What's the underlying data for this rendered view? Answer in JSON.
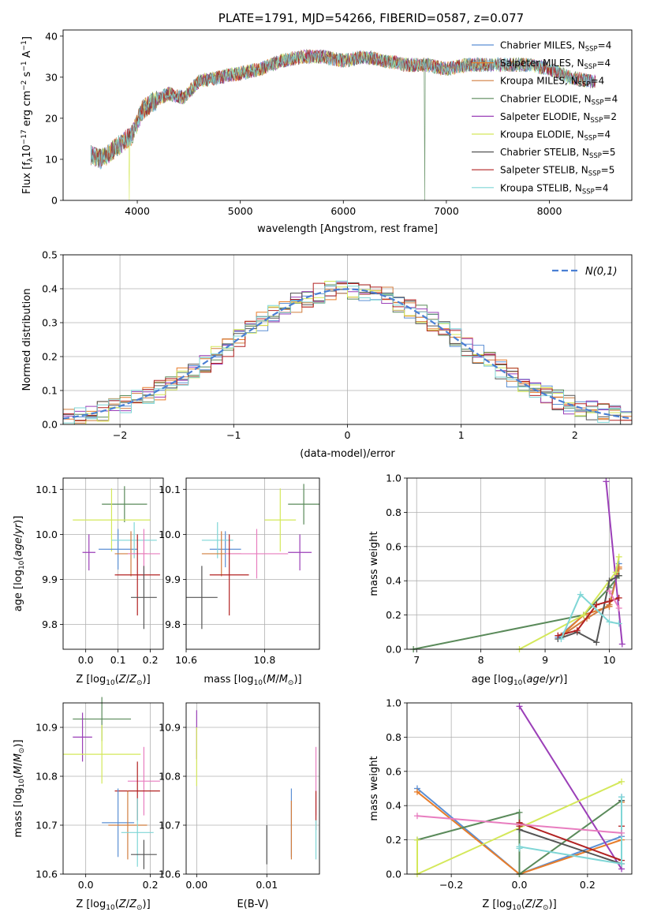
{
  "chart_data": [
    {
      "id": "spectrum",
      "type": "line",
      "title": "PLATE=1791, MJD=54266, FIBERID=0587, z=0.077",
      "xlabel": "wavelength [Angstrom, rest frame]",
      "ylabel": "Flux [f_λ10^-17 erg cm^-2 s^-1 A^-1]",
      "xlim": [
        3280,
        8800
      ],
      "ylim": [
        0,
        41.5
      ],
      "xticks": [
        4000,
        5000,
        6000,
        7000,
        8000
      ],
      "yticks": [
        0,
        10,
        20,
        30,
        40
      ],
      "legend_position": "top-right",
      "legend": [
        {
          "name": "Chabrier MILES, N_SSP=4",
          "color": "#5b8fd4"
        },
        {
          "name": "Salpeter MILES, N_SSP=4",
          "color": "#e87d2a"
        },
        {
          "name": "Kroupa MILES, N_SSP=4",
          "color": "#d17d3f"
        },
        {
          "name": "Chabrier ELODIE, N_SSP=4",
          "color": "#5a8a5a"
        },
        {
          "name": "Salpeter ELODIE, N_SSP=2",
          "color": "#9b3fb8"
        },
        {
          "name": "Kroupa ELODIE, N_SSP=4",
          "color": "#d4e85a"
        },
        {
          "name": "Chabrier STELIB, N_SSP=5",
          "color": "#555555"
        },
        {
          "name": "Salpeter STELIB, N_SSP=5",
          "color": "#b22222"
        },
        {
          "name": "Kroupa STELIB, N_SSP=4",
          "color": "#7fd6d6"
        }
      ],
      "spectrum_envelope": {
        "x": [
          3550,
          3650,
          3750,
          3850,
          3950,
          4050,
          4150,
          4300,
          4450,
          4600,
          4800,
          5000,
          5200,
          5400,
          5600,
          5800,
          6000,
          6200,
          6400,
          6600,
          6800,
          7000,
          7200,
          7400,
          7600,
          7800,
          8000,
          8200,
          8400
        ],
        "y": [
          11,
          10,
          12,
          14,
          16,
          22,
          24,
          26,
          25,
          29,
          30,
          31,
          32,
          34,
          35,
          35,
          34,
          35,
          34,
          33,
          33,
          32,
          33,
          33,
          33,
          33,
          32,
          30,
          29
        ]
      }
    },
    {
      "id": "residuals",
      "type": "bar",
      "xlabel": "(data-model)/error",
      "ylabel": "Normed distribution",
      "xlim": [
        -2.5,
        2.5
      ],
      "ylim": [
        0,
        0.5
      ],
      "xticks": [
        -2,
        -1,
        0,
        1,
        2
      ],
      "yticks": [
        0.0,
        0.1,
        0.2,
        0.3,
        0.4,
        0.5
      ],
      "legend_position": "top-right",
      "reference_label": "N(0,1)",
      "bin_width": 0.1
    },
    {
      "id": "age_vs_Z",
      "type": "scatter",
      "xlabel": "Z [log10(Z/Z⊙)]",
      "ylabel": "age [log10(age/yr)]",
      "xlim": [
        -0.07,
        0.24
      ],
      "ylim": [
        9.745,
        10.125
      ],
      "xticks": [
        0.0,
        0.1,
        0.2
      ],
      "yticks": [
        9.8,
        9.9,
        10.0,
        10.1
      ],
      "points": [
        {
          "x": 0.12,
          "y": 10.067,
          "xerr": 0.07,
          "yerr": 0.04,
          "color": "#5a8a5a"
        },
        {
          "x": 0.08,
          "y": 10.032,
          "xerr": 0.12,
          "yerr": 0.07,
          "color": "#d4e85a"
        },
        {
          "x": 0.1,
          "y": 9.967,
          "xerr": 0.06,
          "yerr": 0.045,
          "color": "#5b8fd4"
        },
        {
          "x": 0.15,
          "y": 9.987,
          "xerr": 0.07,
          "yerr": 0.04,
          "color": "#7fd6d6"
        },
        {
          "x": 0.01,
          "y": 9.96,
          "xerr": 0.02,
          "yerr": 0.04,
          "color": "#9b3fb8"
        },
        {
          "x": 0.14,
          "y": 9.957,
          "xerr": 0.05,
          "yerr": 0.05,
          "color": "#d17d3f"
        },
        {
          "x": 0.18,
          "y": 9.957,
          "xerr": 0.05,
          "yerr": 0.055,
          "color": "#e87dbf"
        },
        {
          "x": 0.16,
          "y": 9.91,
          "xerr": 0.07,
          "yerr": 0.09,
          "color": "#b22222"
        },
        {
          "x": 0.18,
          "y": 9.86,
          "xerr": 0.04,
          "yerr": 0.07,
          "color": "#555555"
        }
      ]
    },
    {
      "id": "age_vs_mass",
      "type": "scatter",
      "xlabel": "mass [log10(M/M⊙)]",
      "ylabel": "",
      "xlim": [
        10.6,
        10.94
      ],
      "ylim": [
        9.745,
        10.125
      ],
      "xticks": [
        10.6,
        10.8
      ],
      "yticks": [
        9.8,
        9.9,
        10.0,
        10.1
      ],
      "points": [
        {
          "x": 10.9,
          "y": 10.067,
          "xerr": 0.04,
          "yerr": 0.045,
          "color": "#5a8a5a"
        },
        {
          "x": 10.84,
          "y": 10.032,
          "xerr": 0.04,
          "yerr": 0.07,
          "color": "#d4e85a"
        },
        {
          "x": 10.7,
          "y": 9.967,
          "xerr": 0.04,
          "yerr": 0.04,
          "color": "#5b8fd4"
        },
        {
          "x": 10.68,
          "y": 9.987,
          "xerr": 0.04,
          "yerr": 0.04,
          "color": "#7fd6d6"
        },
        {
          "x": 10.89,
          "y": 9.96,
          "xerr": 0.03,
          "yerr": 0.04,
          "color": "#9b3fb8"
        },
        {
          "x": 10.69,
          "y": 9.957,
          "xerr": 0.05,
          "yerr": 0.05,
          "color": "#d17d3f"
        },
        {
          "x": 10.78,
          "y": 9.957,
          "xerr": 0.08,
          "yerr": 0.055,
          "color": "#e87dbf"
        },
        {
          "x": 10.71,
          "y": 9.91,
          "xerr": 0.05,
          "yerr": 0.09,
          "color": "#b22222"
        },
        {
          "x": 10.64,
          "y": 9.86,
          "xerr": 0.04,
          "yerr": 0.07,
          "color": "#555555"
        }
      ]
    },
    {
      "id": "mass_weight_vs_age",
      "type": "line",
      "xlabel": "age [log10(age/yr)]",
      "ylabel": "mass weight",
      "xlim": [
        6.85,
        10.35
      ],
      "ylim": [
        0,
        1
      ],
      "xticks": [
        7,
        8,
        9,
        10
      ],
      "yticks": [
        0.0,
        0.2,
        0.4,
        0.6,
        0.8,
        1.0
      ],
      "series": [
        {
          "color": "#5b8fd4",
          "x": [
            9.2,
            9.6,
            10.0,
            10.15
          ],
          "y": [
            0.07,
            0.2,
            0.25,
            0.5
          ]
        },
        {
          "color": "#e87d2a",
          "x": [
            9.25,
            9.6,
            10.0,
            10.15
          ],
          "y": [
            0.08,
            0.2,
            0.25,
            0.48
          ]
        },
        {
          "color": "#d17d3f",
          "x": [
            9.3,
            9.65,
            10.0,
            10.15
          ],
          "y": [
            0.09,
            0.18,
            0.26,
            0.47
          ]
        },
        {
          "color": "#5a8a5a",
          "x": [
            6.95,
            9.6,
            10.0,
            10.15
          ],
          "y": [
            0.0,
            0.2,
            0.36,
            0.43
          ]
        },
        {
          "color": "#9b3fb8",
          "x": [
            9.95,
            10.2
          ],
          "y": [
            0.98,
            0.03
          ]
        },
        {
          "color": "#d4e85a",
          "x": [
            8.6,
            9.6,
            10.1,
            10.15
          ],
          "y": [
            0.0,
            0.2,
            0.45,
            0.54
          ]
        },
        {
          "color": "#555555",
          "x": [
            9.2,
            9.5,
            9.8,
            10.0,
            10.15
          ],
          "y": [
            0.06,
            0.1,
            0.04,
            0.4,
            0.43
          ]
        },
        {
          "color": "#b22222",
          "x": [
            9.2,
            9.5,
            9.8,
            10.0,
            10.15
          ],
          "y": [
            0.08,
            0.11,
            0.26,
            0.28,
            0.3
          ]
        },
        {
          "color": "#7fd6d6",
          "x": [
            9.25,
            9.55,
            10.0,
            10.15
          ],
          "y": [
            0.06,
            0.32,
            0.16,
            0.15
          ]
        },
        {
          "color": "#e87dbf",
          "x": [
            10.0,
            10.15
          ],
          "y": [
            0.34,
            0.24
          ]
        }
      ]
    },
    {
      "id": "mass_vs_Z",
      "type": "scatter",
      "xlabel": "Z [log10(Z/Z⊙)]",
      "ylabel": "mass [log10(M/M⊙)]",
      "xlim": [
        -0.07,
        0.24
      ],
      "ylim": [
        10.6,
        10.95
      ],
      "xticks": [
        0.0,
        0.2
      ],
      "yticks": [
        10.6,
        10.7,
        10.8,
        10.9
      ],
      "points": [
        {
          "x": 0.05,
          "y": 10.917,
          "xerr": 0.09,
          "yerr": 0.045,
          "color": "#5a8a5a"
        },
        {
          "x": -0.01,
          "y": 10.88,
          "xerr": 0.03,
          "yerr": 0.05,
          "color": "#9b3fb8"
        },
        {
          "x": 0.05,
          "y": 10.845,
          "xerr": 0.12,
          "yerr": 0.06,
          "color": "#d4e85a"
        },
        {
          "x": 0.18,
          "y": 10.79,
          "xerr": 0.05,
          "yerr": 0.07,
          "color": "#e87dbf"
        },
        {
          "x": 0.16,
          "y": 10.77,
          "xerr": 0.07,
          "yerr": 0.06,
          "color": "#b22222"
        },
        {
          "x": 0.1,
          "y": 10.705,
          "xerr": 0.05,
          "yerr": 0.07,
          "color": "#5b8fd4"
        },
        {
          "x": 0.13,
          "y": 10.7,
          "xerr": 0.06,
          "yerr": 0.07,
          "color": "#d17d3f"
        },
        {
          "x": 0.16,
          "y": 10.685,
          "xerr": 0.05,
          "yerr": 0.07,
          "color": "#7fd6d6"
        },
        {
          "x": 0.18,
          "y": 10.64,
          "xerr": 0.04,
          "yerr": 0.03,
          "color": "#555555"
        }
      ]
    },
    {
      "id": "mass_vs_EBV",
      "type": "scatter",
      "xlabel": "E(B-V)",
      "ylabel": "",
      "xlim": [
        -0.0015,
        0.0175
      ],
      "ylim": [
        10.6,
        10.95
      ],
      "xticks": [
        0.0,
        0.01
      ],
      "yticks": [
        10.6,
        10.7,
        10.8,
        10.9
      ],
      "points": [
        {
          "x": 0.0,
          "y": 10.885,
          "yerr": 0.05,
          "color": "#9b3fb8"
        },
        {
          "x": 0.0,
          "y": 10.84,
          "yerr": 0.06,
          "color": "#d4e85a"
        },
        {
          "x": 0.01,
          "y": 10.66,
          "yerr": 0.04,
          "color": "#555555"
        },
        {
          "x": 0.0135,
          "y": 10.705,
          "yerr": 0.07,
          "color": "#5b8fd4"
        },
        {
          "x": 0.0135,
          "y": 10.69,
          "yerr": 0.06,
          "color": "#d17d3f"
        },
        {
          "x": 0.017,
          "y": 10.79,
          "yerr": 0.07,
          "color": "#e87dbf"
        },
        {
          "x": 0.017,
          "y": 10.73,
          "yerr": 0.04,
          "color": "#b22222"
        },
        {
          "x": 0.017,
          "y": 10.67,
          "yerr": 0.04,
          "color": "#7fd6d6"
        }
      ]
    },
    {
      "id": "mass_weight_vs_Z",
      "type": "line",
      "xlabel": "Z [log10(Z/Z⊙)]",
      "ylabel": "mass weight",
      "xlim": [
        -0.33,
        0.33
      ],
      "ylim": [
        0,
        1
      ],
      "xticks": [
        -0.2,
        0.0,
        0.2
      ],
      "yticks": [
        0.0,
        0.2,
        0.4,
        0.6,
        0.8,
        1.0
      ],
      "series": [
        {
          "color": "#5b8fd4",
          "x": [
            -0.3,
            0.0,
            0.3,
            0.3
          ],
          "y": [
            0.5,
            0.0,
            0.22,
            0.45
          ]
        },
        {
          "color": "#e87d2a",
          "x": [
            -0.3,
            0.0,
            0.3,
            0.3
          ],
          "y": [
            0.48,
            0.0,
            0.2,
            0.42
          ]
        },
        {
          "color": "#5a8a5a",
          "x": [
            -0.3,
            0.0,
            0.0,
            0.3
          ],
          "y": [
            0.2,
            0.36,
            0.0,
            0.43
          ]
        },
        {
          "color": "#9b3fb8",
          "x": [
            0.0,
            0.3
          ],
          "y": [
            0.98,
            0.03
          ]
        },
        {
          "color": "#d4e85a",
          "x": [
            -0.3,
            -0.3,
            0.3
          ],
          "y": [
            0.2,
            0.0,
            0.54
          ]
        },
        {
          "color": "#555555",
          "x": [
            0.0,
            0.0,
            0.3,
            0.3
          ],
          "y": [
            0.3,
            0.26,
            0.06,
            0.43
          ]
        },
        {
          "color": "#b22222",
          "x": [
            0.0,
            0.0,
            0.3,
            0.3
          ],
          "y": [
            0.28,
            0.3,
            0.08,
            0.28
          ]
        },
        {
          "color": "#7fd6d6",
          "x": [
            0.0,
            0.0,
            0.3,
            0.3
          ],
          "y": [
            0.15,
            0.16,
            0.06,
            0.45
          ]
        },
        {
          "color": "#e87dbf",
          "x": [
            -0.3,
            0.3
          ],
          "y": [
            0.34,
            0.24
          ]
        }
      ]
    }
  ]
}
